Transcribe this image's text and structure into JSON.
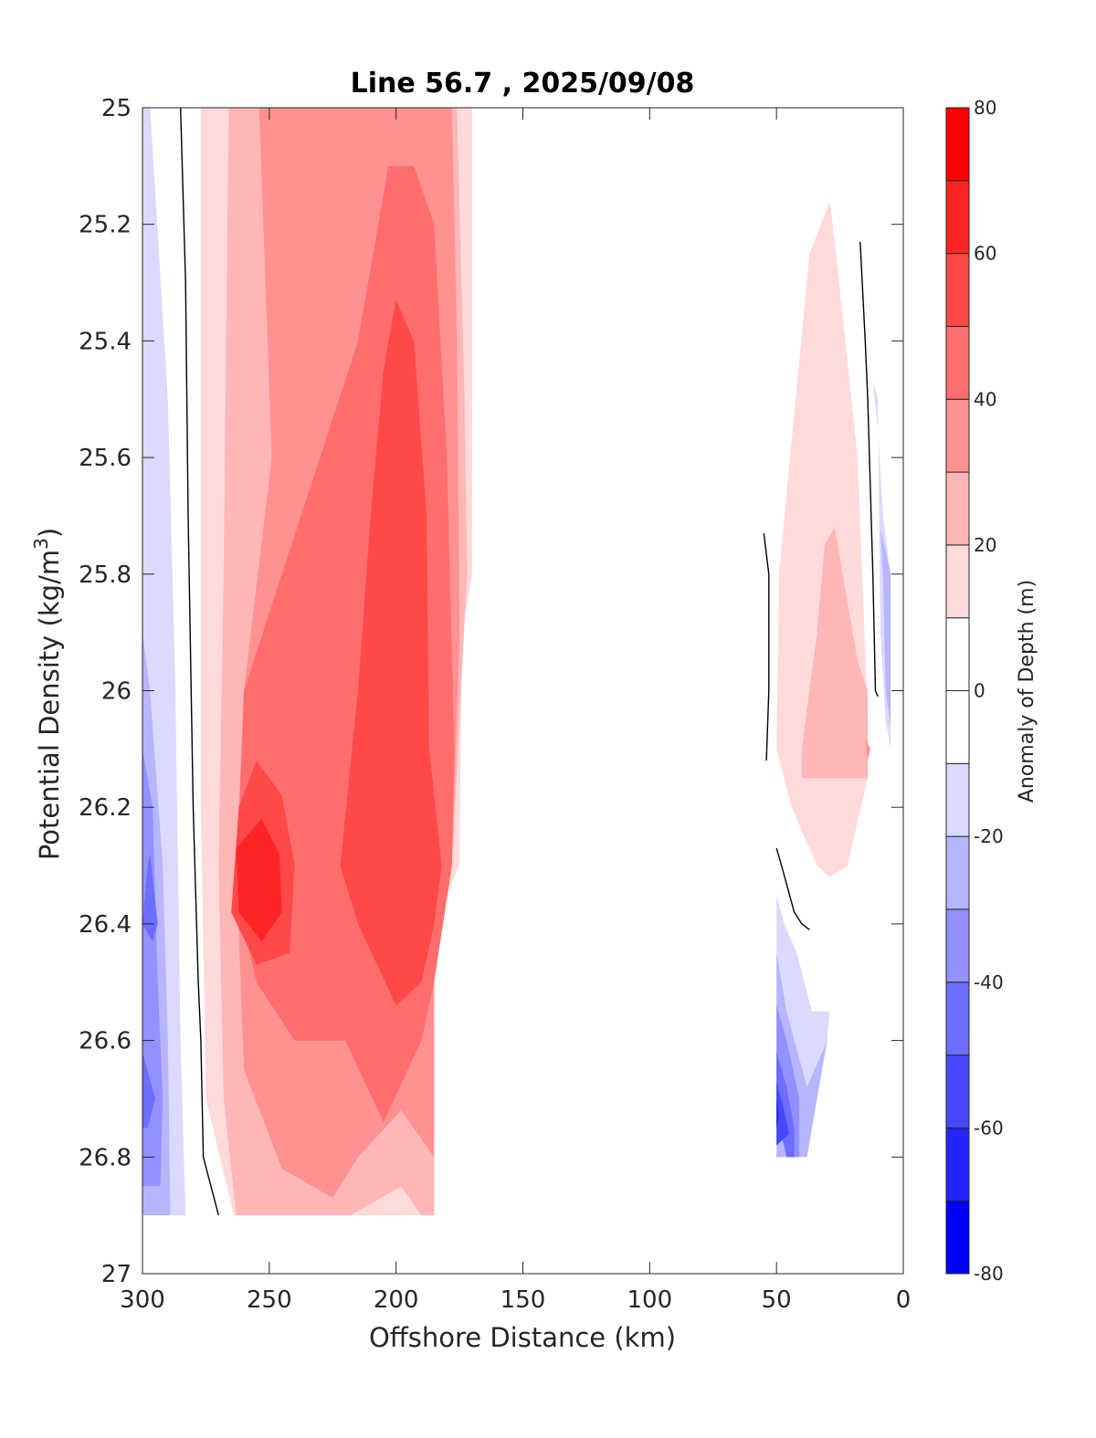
{
  "chart_data": {
    "type": "contour",
    "title": "Line 56.7 , 2025/09/08",
    "xlabel": "Offshore Distance (km)",
    "ylabel": "Potential Density (kg/m",
    "ylabel_superscript": "3",
    "ylabel_suffix": ")",
    "xlim": [
      300,
      0
    ],
    "ylim": [
      25,
      27
    ],
    "x_reversed": true,
    "y_reversed": true,
    "xticks": [
      300,
      250,
      200,
      150,
      100,
      50,
      0
    ],
    "xtick_labels": [
      "300",
      "250",
      "200",
      "150",
      "100",
      "50",
      "0"
    ],
    "yticks": [
      25,
      25.2,
      25.4,
      25.6,
      25.8,
      26,
      26.2,
      26.4,
      26.6,
      26.8,
      27
    ],
    "ytick_labels": [
      "25",
      "25.2",
      "25.4",
      "25.6",
      "25.8",
      "26",
      "26.2",
      "26.4",
      "26.6",
      "26.8",
      "27"
    ],
    "grid": false,
    "colorbar": {
      "label": "Anomaly of Depth (m)",
      "position": "right",
      "range": [
        -80,
        80
      ],
      "levels": [
        -80,
        -70,
        -60,
        -50,
        -40,
        -30,
        -20,
        -10,
        0,
        10,
        20,
        30,
        40,
        50,
        60,
        70,
        80
      ],
      "tick_values": [
        80,
        60,
        40,
        20,
        0,
        -20,
        -40,
        -60,
        -80
      ],
      "tick_labels": [
        "80",
        "60",
        "40",
        "20",
        "0",
        "-20",
        "-40",
        "-60",
        "-80"
      ],
      "colors": [
        "#0000ff",
        "#2424ff",
        "#4848ff",
        "#6d6dff",
        "#9191ff",
        "#b6b6ff",
        "#dadaff",
        "#ffffff",
        "#ffffff",
        "#ffdada",
        "#ffb6b6",
        "#ff9191",
        "#ff6d6d",
        "#ff4848",
        "#ff2424",
        "#ff0000"
      ]
    },
    "regions": [
      {
        "level": -10,
        "color": "#dadaff",
        "points": [
          [
            300,
            25
          ],
          [
            297,
            25
          ],
          [
            290,
            25.5
          ],
          [
            287,
            26.0
          ],
          [
            285,
            26.6
          ],
          [
            283,
            26.9
          ],
          [
            300,
            26.9
          ]
        ]
      },
      {
        "level": -20,
        "color": "#b6b6ff",
        "points": [
          [
            300,
            25.9
          ],
          [
            297,
            26.0
          ],
          [
            292,
            26.3
          ],
          [
            290,
            26.6
          ],
          [
            289,
            26.9
          ],
          [
            300,
            26.9
          ]
        ]
      },
      {
        "level": -30,
        "color": "#9191ff",
        "points": [
          [
            300,
            26.1
          ],
          [
            296,
            26.2
          ],
          [
            294,
            26.5
          ],
          [
            292,
            26.7
          ],
          [
            293,
            26.85
          ],
          [
            300,
            26.85
          ]
        ]
      },
      {
        "level": -40,
        "color": "#6d6dff",
        "points": [
          [
            297,
            26.28
          ],
          [
            294,
            26.4
          ],
          [
            296,
            26.43
          ],
          [
            300,
            26.4
          ],
          [
            298,
            26.3
          ]
        ]
      },
      {
        "level": -40,
        "color": "#6d6dff",
        "points": [
          [
            300,
            26.62
          ],
          [
            295,
            26.7
          ],
          [
            298,
            26.75
          ],
          [
            300,
            26.75
          ]
        ]
      },
      {
        "level": 10,
        "color": "#ffdada",
        "points": [
          [
            277,
            25
          ],
          [
            170,
            25
          ],
          [
            170,
            25.8
          ],
          [
            174,
            25.9
          ],
          [
            175,
            26.3
          ],
          [
            185,
            26.4
          ],
          [
            185,
            26.9
          ],
          [
            264,
            26.9
          ],
          [
            275,
            26.7
          ],
          [
            277,
            26.2
          ]
        ]
      },
      {
        "level": 20,
        "color": "#ffb6b6",
        "points": [
          [
            266,
            25
          ],
          [
            176,
            25
          ],
          [
            173,
            25.5
          ],
          [
            172,
            25.8
          ],
          [
            178,
            26.3
          ],
          [
            185,
            26.4
          ],
          [
            185,
            26.9
          ],
          [
            190,
            26.9
          ],
          [
            198,
            26.85
          ],
          [
            218,
            26.9
          ],
          [
            263,
            26.9
          ],
          [
            268,
            26.7
          ],
          [
            270,
            26.3
          ],
          [
            268,
            25.8
          ]
        ]
      },
      {
        "level": 30,
        "color": "#ff9191",
        "points": [
          [
            254,
            25
          ],
          [
            178,
            25
          ],
          [
            176,
            25.4
          ],
          [
            175,
            25.9
          ],
          [
            178,
            26.3
          ],
          [
            185,
            26.4
          ],
          [
            185,
            26.8
          ],
          [
            198,
            26.72
          ],
          [
            215,
            26.8
          ],
          [
            225,
            26.87
          ],
          [
            245,
            26.82
          ],
          [
            260,
            26.65
          ],
          [
            263,
            26.3
          ],
          [
            260,
            26.0
          ],
          [
            249,
            25.6
          ]
        ]
      },
      {
        "level": 40,
        "color": "#ff6d6d",
        "points": [
          [
            203,
            25.1
          ],
          [
            193,
            25.1
          ],
          [
            185,
            25.2
          ],
          [
            180,
            25.6
          ],
          [
            177,
            26.1
          ],
          [
            178,
            26.3
          ],
          [
            185,
            26.5
          ],
          [
            190,
            26.6
          ],
          [
            205,
            26.74
          ],
          [
            220,
            26.6
          ],
          [
            240,
            26.6
          ],
          [
            255,
            26.5
          ],
          [
            263,
            26.35
          ],
          [
            260,
            26.0
          ],
          [
            245,
            25.8
          ],
          [
            230,
            25.6
          ],
          [
            215,
            25.4
          ]
        ]
      },
      {
        "level": 50,
        "color": "#ff4848",
        "points": [
          [
            200,
            25.33
          ],
          [
            193,
            25.4
          ],
          [
            188,
            25.7
          ],
          [
            187,
            26.1
          ],
          [
            182,
            26.3
          ],
          [
            185,
            26.4
          ],
          [
            190,
            26.5
          ],
          [
            200,
            26.54
          ],
          [
            215,
            26.4
          ],
          [
            222,
            26.3
          ],
          [
            215,
            26.0
          ],
          [
            210,
            25.7
          ],
          [
            205,
            25.45
          ]
        ]
      },
      {
        "level": 50,
        "color": "#ff4848",
        "points": [
          [
            255,
            26.12
          ],
          [
            245,
            26.18
          ],
          [
            240,
            26.3
          ],
          [
            242,
            26.45
          ],
          [
            255,
            26.47
          ],
          [
            265,
            26.38
          ],
          [
            262,
            26.2
          ]
        ]
      },
      {
        "level": 60,
        "color": "#ff2424",
        "points": [
          [
            253,
            26.22
          ],
          [
            246,
            26.28
          ],
          [
            245,
            26.38
          ],
          [
            253,
            26.43
          ],
          [
            262,
            26.38
          ],
          [
            263,
            26.27
          ]
        ]
      },
      {
        "level": 10,
        "color": "#ffdada",
        "points": [
          [
            29,
            25.16
          ],
          [
            27,
            25.23
          ],
          [
            18,
            25.6
          ],
          [
            14,
            26.05
          ],
          [
            14,
            26.15
          ],
          [
            22,
            26.3
          ],
          [
            29,
            26.32
          ],
          [
            34,
            26.3
          ],
          [
            44,
            26.2
          ],
          [
            50,
            26.1
          ],
          [
            49,
            25.8
          ],
          [
            37,
            25.25
          ]
        ]
      },
      {
        "level": 20,
        "color": "#ffb6b6",
        "points": [
          [
            27,
            25.72
          ],
          [
            31,
            25.75
          ],
          [
            34,
            25.9
          ],
          [
            40,
            26.1
          ],
          [
            40,
            26.15
          ],
          [
            14,
            26.15
          ],
          [
            14,
            26.0
          ],
          [
            18,
            25.95
          ]
        ]
      },
      {
        "level": 30,
        "color": "#ff9191",
        "points": [
          [
            15,
            26.08
          ],
          [
            13,
            26.1
          ],
          [
            14,
            26.12
          ]
        ]
      },
      {
        "level": -10,
        "color": "#dadaff",
        "points": [
          [
            12,
            25.47
          ],
          [
            10,
            25.5
          ],
          [
            9,
            25.9
          ],
          [
            7,
            26.05
          ],
          [
            5,
            26.1
          ],
          [
            5,
            25.8
          ],
          [
            8,
            25.7
          ],
          [
            10,
            25.55
          ]
        ]
      },
      {
        "level": -20,
        "color": "#b6b6ff",
        "points": [
          [
            9,
            25.72
          ],
          [
            5,
            25.8
          ],
          [
            5,
            26.06
          ],
          [
            7,
            26.0
          ],
          [
            8,
            25.8
          ]
        ]
      },
      {
        "level": -10,
        "color": "#dadaff",
        "points": [
          [
            50,
            26.35
          ],
          [
            47,
            26.4
          ],
          [
            42,
            26.45
          ],
          [
            36,
            26.55
          ],
          [
            29,
            26.55
          ],
          [
            30,
            26.6
          ],
          [
            35,
            26.65
          ],
          [
            45,
            26.8
          ],
          [
            50,
            26.8
          ]
        ]
      },
      {
        "level": -20,
        "color": "#b6b6ff",
        "points": [
          [
            50,
            26.45
          ],
          [
            46,
            26.55
          ],
          [
            38,
            26.68
          ],
          [
            30,
            26.6
          ],
          [
            38,
            26.8
          ],
          [
            50,
            26.8
          ]
        ]
      },
      {
        "level": -30,
        "color": "#9191ff",
        "points": [
          [
            50,
            26.54
          ],
          [
            46,
            26.6
          ],
          [
            41,
            26.7
          ],
          [
            41,
            26.8
          ],
          [
            45,
            26.8
          ],
          [
            50,
            26.75
          ]
        ]
      },
      {
        "level": -40,
        "color": "#6d6dff",
        "points": [
          [
            50,
            26.62
          ],
          [
            46,
            26.68
          ],
          [
            43,
            26.75
          ],
          [
            43,
            26.8
          ],
          [
            46,
            26.8
          ],
          [
            50,
            26.72
          ]
        ]
      },
      {
        "level": -50,
        "color": "#4848ff",
        "points": [
          [
            50,
            26.67
          ],
          [
            47,
            26.72
          ],
          [
            45,
            26.76
          ],
          [
            50,
            26.78
          ]
        ]
      },
      {
        "level": -60,
        "color": "#2424ff",
        "points": [
          [
            50,
            26.7
          ],
          [
            49,
            26.73
          ],
          [
            50,
            26.75
          ]
        ]
      }
    ],
    "zero_contours": [
      {
        "points": [
          [
            285,
            25
          ],
          [
            283,
            25.3
          ],
          [
            282,
            25.7
          ],
          [
            280,
            26.2
          ],
          [
            278,
            26.5
          ],
          [
            277,
            26.6
          ],
          [
            276,
            26.8
          ],
          [
            270,
            26.9
          ]
        ]
      },
      {
        "points": [
          [
            17,
            25.23
          ],
          [
            15,
            25.4
          ],
          [
            14,
            25.5
          ],
          [
            12,
            25.8
          ],
          [
            11,
            26.0
          ],
          [
            10,
            26.01
          ]
        ]
      },
      {
        "points": [
          [
            55,
            25.73
          ],
          [
            53,
            25.8
          ],
          [
            53,
            26.0
          ],
          [
            54,
            26.12
          ]
        ]
      },
      {
        "points": [
          [
            50,
            26.27
          ],
          [
            48,
            26.3
          ],
          [
            43,
            26.38
          ],
          [
            40,
            26.4
          ],
          [
            37,
            26.41
          ]
        ]
      }
    ]
  }
}
